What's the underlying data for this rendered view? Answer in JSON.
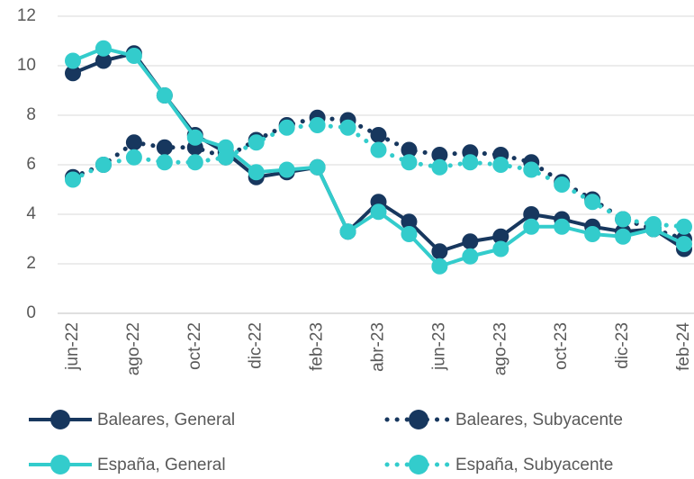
{
  "chart_data": {
    "type": "line",
    "categories": [
      "jun-22",
      null,
      "ago-22",
      null,
      "oct-22",
      null,
      "dic-22",
      null,
      "feb-23",
      null,
      "abr-23",
      null,
      "jun-23",
      null,
      "ago-23",
      null,
      "oct-23",
      null,
      "dic-23",
      null,
      "feb-24"
    ],
    "series": [
      {
        "name": "Baleares, General",
        "color": "#17375e",
        "style": "solid",
        "values": [
          9.7,
          10.2,
          10.5,
          8.8,
          7.2,
          6.5,
          5.5,
          5.7,
          5.9,
          3.3,
          4.5,
          3.7,
          2.5,
          2.9,
          3.1,
          4.0,
          3.8,
          3.5,
          3.3,
          3.4,
          2.6
        ]
      },
      {
        "name": "Baleares, Subyacente",
        "color": "#17375e",
        "style": "dotted",
        "values": [
          5.5,
          6.0,
          6.9,
          6.7,
          6.7,
          6.3,
          7.0,
          7.6,
          7.9,
          7.8,
          7.2,
          6.6,
          6.4,
          6.5,
          6.4,
          6.1,
          5.3,
          4.6,
          3.8,
          3.4,
          3.0
        ]
      },
      {
        "name": "España, General",
        "color": "#33cccc",
        "style": "solid",
        "values": [
          10.2,
          10.7,
          10.4,
          8.8,
          7.1,
          6.7,
          5.7,
          5.8,
          5.9,
          3.3,
          4.1,
          3.2,
          1.9,
          2.3,
          2.6,
          3.5,
          3.5,
          3.2,
          3.1,
          3.4,
          2.8
        ]
      },
      {
        "name": "España, Subyacente",
        "color": "#33cccc",
        "style": "dotted",
        "values": [
          5.4,
          6.0,
          6.3,
          6.1,
          6.1,
          6.3,
          6.9,
          7.5,
          7.6,
          7.5,
          6.6,
          6.1,
          5.9,
          6.1,
          6.0,
          5.8,
          5.2,
          4.5,
          3.8,
          3.6,
          3.5
        ]
      }
    ],
    "ylim": [
      0,
      12
    ],
    "yticks": [
      0,
      2,
      4,
      6,
      8,
      10,
      12
    ],
    "grid": true,
    "legend": "bottom"
  }
}
